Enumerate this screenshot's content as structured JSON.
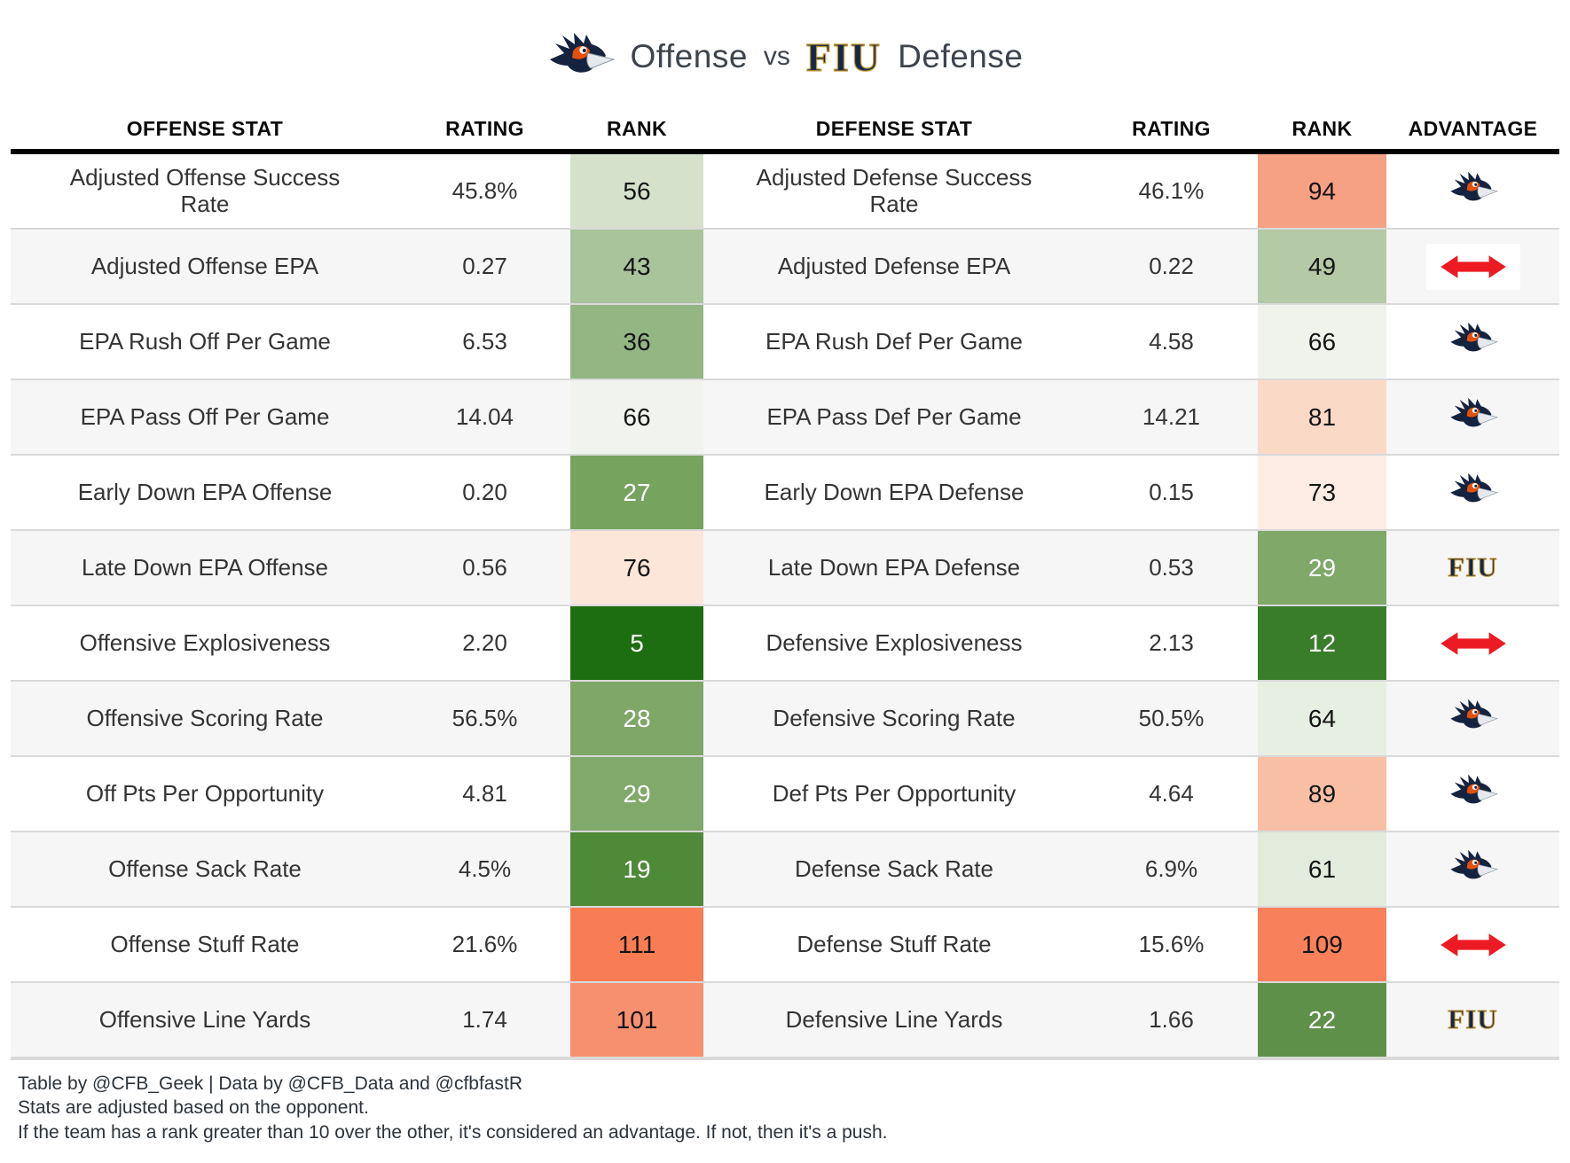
{
  "title": {
    "left_team_word": "Offense",
    "vs": "vs",
    "right_team_word": "Defense",
    "left_logo": "utsa-roadrunner-logo",
    "right_logo": "fiu-wordmark",
    "fiu_text": "FIU"
  },
  "colors": {
    "header_rule": "#000000",
    "row_stripe": "#f6f6f6",
    "row_border": "#d9d9d9",
    "push_arrow_red": "#ec1b23",
    "utsa_navy": "#16233f",
    "utsa_orange": "#e4500a",
    "fiu_navy": "#13294B",
    "fiu_gold": "#bd9331"
  },
  "table": {
    "headers": [
      "OFFENSE STAT",
      "RATING",
      "RANK",
      "DEFENSE STAT",
      "RATING",
      "RANK",
      "ADVANTAGE"
    ],
    "rows": [
      {
        "offense_stat": "Adjusted Offense Success Rate",
        "offense_rating": "45.8%",
        "offense_rank": "56",
        "offense_rank_bg": "#d5e1cb",
        "offense_rank_fg": "#141414",
        "defense_stat": "Adjusted Defense Success Rate",
        "defense_rating": "46.1%",
        "defense_rank": "94",
        "defense_rank_bg": "#f6a184",
        "defense_rank_fg": "#141414",
        "advantage": "utsa"
      },
      {
        "offense_stat": "Adjusted Offense EPA",
        "offense_rating": "0.27",
        "offense_rank": "43",
        "offense_rank_bg": "#a9c39b",
        "offense_rank_fg": "#141414",
        "defense_stat": "Adjusted Defense EPA",
        "defense_rating": "0.22",
        "defense_rank": "49",
        "defense_rank_bg": "#b4c9a5",
        "defense_rank_fg": "#141414",
        "advantage": "push"
      },
      {
        "offense_stat": "EPA Rush Off Per Game",
        "offense_rating": "6.53",
        "offense_rank": "36",
        "offense_rank_bg": "#94b683",
        "offense_rank_fg": "#141414",
        "defense_stat": "EPA Rush Def Per Game",
        "defense_rating": "4.58",
        "defense_rank": "66",
        "defense_rank_bg": "#eff3ec",
        "defense_rank_fg": "#141414",
        "advantage": "utsa"
      },
      {
        "offense_stat": "EPA Pass Off Per Game",
        "offense_rating": "14.04",
        "offense_rank": "66",
        "offense_rank_bg": "#f1f4ee",
        "offense_rank_fg": "#141414",
        "defense_stat": "EPA Pass Def Per Game",
        "defense_rating": "14.21",
        "defense_rank": "81",
        "defense_rank_bg": "#fbd9c7",
        "defense_rank_fg": "#141414",
        "advantage": "utsa"
      },
      {
        "offense_stat": "Early Down EPA Offense",
        "offense_rating": "0.20",
        "offense_rank": "27",
        "offense_rank_bg": "#76a35d",
        "offense_rank_fg": "#ffffff",
        "defense_stat": "Early Down EPA Defense",
        "defense_rating": "0.15",
        "defense_rank": "73",
        "defense_rank_bg": "#fdece3",
        "defense_rank_fg": "#141414",
        "advantage": "utsa"
      },
      {
        "offense_stat": "Late Down EPA Offense",
        "offense_rating": "0.56",
        "offense_rank": "76",
        "offense_rank_bg": "#fce5d9",
        "offense_rank_fg": "#141414",
        "defense_stat": "Late Down EPA Defense",
        "defense_rating": "0.53",
        "defense_rank": "29",
        "defense_rank_bg": "#7fa869",
        "defense_rank_fg": "#ffffff",
        "advantage": "fiu"
      },
      {
        "offense_stat": "Offensive Explosiveness",
        "offense_rating": "2.20",
        "offense_rank": "5",
        "offense_rank_bg": "#1d6e10",
        "offense_rank_fg": "#ffffff",
        "defense_stat": "Defensive Explosiveness",
        "defense_rating": "2.13",
        "defense_rank": "12",
        "defense_rank_bg": "#397d2b",
        "defense_rank_fg": "#ffffff",
        "advantage": "push"
      },
      {
        "offense_stat": "Offensive Scoring Rate",
        "offense_rating": "56.5%",
        "offense_rank": "28",
        "offense_rank_bg": "#7ea768",
        "offense_rank_fg": "#ffffff",
        "defense_stat": "Defensive Scoring Rate",
        "defense_rating": "50.5%",
        "defense_rank": "64",
        "defense_rank_bg": "#e7eee2",
        "defense_rank_fg": "#141414",
        "advantage": "utsa"
      },
      {
        "offense_stat": "Off Pts Per Opportunity",
        "offense_rating": "4.81",
        "offense_rank": "29",
        "offense_rank_bg": "#81a96b",
        "offense_rank_fg": "#ffffff",
        "defense_stat": "Def Pts Per Opportunity",
        "defense_rating": "4.64",
        "defense_rank": "89",
        "defense_rank_bg": "#f9bfa5",
        "defense_rank_fg": "#141414",
        "advantage": "utsa"
      },
      {
        "offense_stat": "Offense Sack Rate",
        "offense_rating": "4.5%",
        "offense_rank": "19",
        "offense_rank_bg": "#4f8a38",
        "offense_rank_fg": "#ffffff",
        "defense_stat": "Defense Sack Rate",
        "defense_rating": "6.9%",
        "defense_rank": "61",
        "defense_rank_bg": "#e2ebdc",
        "defense_rank_fg": "#141414",
        "advantage": "utsa"
      },
      {
        "offense_stat": "Offense Stuff Rate",
        "offense_rating": "21.6%",
        "offense_rank": "111",
        "offense_rank_bg": "#f87d55",
        "offense_rank_fg": "#141414",
        "defense_stat": "Defense Stuff Rate",
        "defense_rating": "15.6%",
        "defense_rank": "109",
        "defense_rank_bg": "#f8815c",
        "defense_rank_fg": "#141414",
        "advantage": "push"
      },
      {
        "offense_stat": "Offensive Line Yards",
        "offense_rating": "1.74",
        "offense_rank": "101",
        "offense_rank_bg": "#f7906e",
        "offense_rank_fg": "#141414",
        "defense_stat": "Defensive Line Yards",
        "defense_rating": "1.66",
        "defense_rank": "22",
        "defense_rank_bg": "#5e9049",
        "defense_rank_fg": "#ffffff",
        "advantage": "fiu"
      }
    ]
  },
  "footer": {
    "lines": [
      "Table by @CFB_Geek | Data by @CFB_Data and @cfbfastR",
      "Stats are adjusted based on the opponent.",
      "If the team has a rank greater than 10 over the other, it's considered an advantage. If not, then it's a push."
    ]
  },
  "chart_data": {
    "type": "table",
    "title": "Offense vs FIU Defense",
    "columns": [
      "OFFENSE STAT",
      "RATING",
      "RANK",
      "DEFENSE STAT",
      "RATING",
      "RANK",
      "ADVANTAGE"
    ],
    "rows": [
      [
        "Adjusted Offense Success Rate",
        "45.8%",
        56,
        "Adjusted Defense Success Rate",
        "46.1%",
        94,
        "UTSA"
      ],
      [
        "Adjusted Offense EPA",
        0.27,
        43,
        "Adjusted Defense EPA",
        0.22,
        49,
        "PUSH"
      ],
      [
        "EPA Rush Off Per Game",
        6.53,
        36,
        "EPA Rush Def Per Game",
        4.58,
        66,
        "UTSA"
      ],
      [
        "EPA Pass Off Per Game",
        14.04,
        66,
        "EPA Pass Def Per Game",
        14.21,
        81,
        "UTSA"
      ],
      [
        "Early Down EPA Offense",
        0.2,
        27,
        "Early Down EPA Defense",
        0.15,
        73,
        "UTSA"
      ],
      [
        "Late Down EPA Offense",
        0.56,
        76,
        "Late Down EPA Defense",
        0.53,
        29,
        "FIU"
      ],
      [
        "Offensive Explosiveness",
        2.2,
        5,
        "Defensive Explosiveness",
        2.13,
        12,
        "PUSH"
      ],
      [
        "Offensive Scoring Rate",
        "56.5%",
        28,
        "Defensive Scoring Rate",
        "50.5%",
        64,
        "UTSA"
      ],
      [
        "Off Pts Per Opportunity",
        4.81,
        29,
        "Def Pts Per Opportunity",
        4.64,
        89,
        "UTSA"
      ],
      [
        "Offense Sack Rate",
        "4.5%",
        19,
        "Defense Sack Rate",
        "6.9%",
        61,
        "UTSA"
      ],
      [
        "Offense Stuff Rate",
        "21.6%",
        111,
        "Defense Stuff Rate",
        "15.6%",
        109,
        "PUSH"
      ],
      [
        "Offensive Line Yards",
        1.74,
        101,
        "Defensive Line Yards",
        1.66,
        22,
        "FIU"
      ]
    ],
    "notes": "Rank cells are color-coded green (good) to red (bad) on a 1-133 scale; advantage column shows UTSA logo, FIU logo, or red push arrow."
  }
}
